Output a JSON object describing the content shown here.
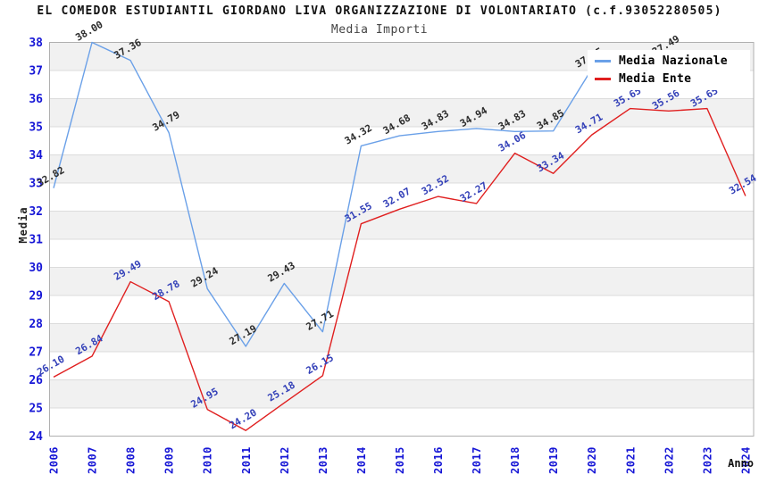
{
  "chart_data": {
    "type": "line",
    "title": "EL COMEDOR ESTUDIANTIL GIORDANO LIVA ORGANIZZAZIONE DI VOLONTARIATO (c.f.93052280505)",
    "subtitle": "Media Importi",
    "xlabel": "Anno",
    "ylabel": "Media",
    "ylim": [
      24,
      38
    ],
    "y_ticks": [
      24,
      25,
      26,
      27,
      28,
      29,
      30,
      31,
      32,
      33,
      34,
      35,
      36,
      37,
      38
    ],
    "x": [
      2006,
      2007,
      2008,
      2009,
      2010,
      2011,
      2012,
      2013,
      2014,
      2015,
      2016,
      2017,
      2018,
      2019,
      2020,
      2021,
      2022,
      2023,
      2024
    ],
    "series": [
      {
        "name": "Media Nazionale",
        "color": "#6aa0e8",
        "label_color": "#2b2b2b",
        "values": [
          32.82,
          38.0,
          37.36,
          34.79,
          29.24,
          27.19,
          29.43,
          27.71,
          34.32,
          34.68,
          34.83,
          34.94,
          34.83,
          34.85,
          37.05,
          null,
          37.49,
          null,
          null
        ]
      },
      {
        "name": "Media Ente",
        "color": "#e01f1f",
        "label_color": "#3340b8",
        "values": [
          26.1,
          26.84,
          29.49,
          28.78,
          24.95,
          24.2,
          25.18,
          26.15,
          31.55,
          32.07,
          32.52,
          32.27,
          34.06,
          33.34,
          34.71,
          35.65,
          35.56,
          35.65,
          32.54
        ]
      }
    ],
    "legend_position": "top-right",
    "grid": "horizontal-bands",
    "band_color": "#f1f1f1",
    "grid_line_color": "#dcdcdc",
    "frame_color": "#b0b0b0",
    "tick_label_color": "#1616d6"
  }
}
